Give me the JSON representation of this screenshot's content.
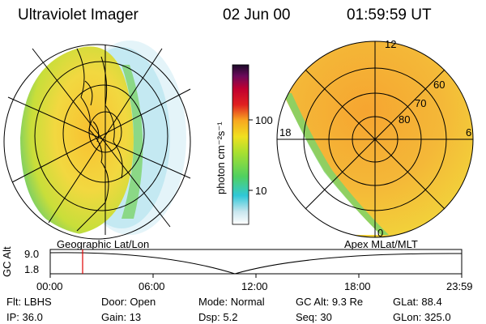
{
  "header": {
    "title": "Ultraviolet Imager",
    "date": "02 Jun 00",
    "time": "01:59:59 UT"
  },
  "colorbar": {
    "label": "photon cm⁻²s⁻¹",
    "ticks": [
      "100",
      "10"
    ]
  },
  "left_panel": {
    "caption": "Geographic Lat/Lon"
  },
  "right_panel": {
    "caption": "Apex MLat/MLT",
    "mlt_labels": {
      "top": "12",
      "left": "18",
      "right": "6",
      "bottom": "0"
    },
    "lat_labels": [
      "60",
      "70",
      "80"
    ]
  },
  "altitude_plot": {
    "ylabel": "GC Alt",
    "yticks": [
      "9.0",
      "1.8"
    ],
    "xticks": [
      "00:00",
      "06:00",
      "12:00",
      "18:00",
      "23:59"
    ],
    "marker_time": "02:00"
  },
  "info": {
    "row1": [
      {
        "label": "Flt:",
        "value": "LBHS"
      },
      {
        "label": "Door:",
        "value": "Open"
      },
      {
        "label": "Mode:",
        "value": "Normal"
      },
      {
        "label": "GC Alt:",
        "value": "9.3 Re"
      },
      {
        "label": "GLat:",
        "value": "88.4"
      }
    ],
    "row2": [
      {
        "label": "IP:",
        "value": "36.0"
      },
      {
        "label": "Gain:",
        "value": "13"
      },
      {
        "label": "Dsp:",
        "value": "5.2"
      },
      {
        "label": "Seq:",
        "value": "30"
      },
      {
        "label": "GLon:",
        "value": "325.0"
      }
    ]
  },
  "colors": {
    "marker": "#e00000",
    "orange": "#f6a623",
    "yellow": "#f4d21f",
    "green": "#9ed43a"
  }
}
